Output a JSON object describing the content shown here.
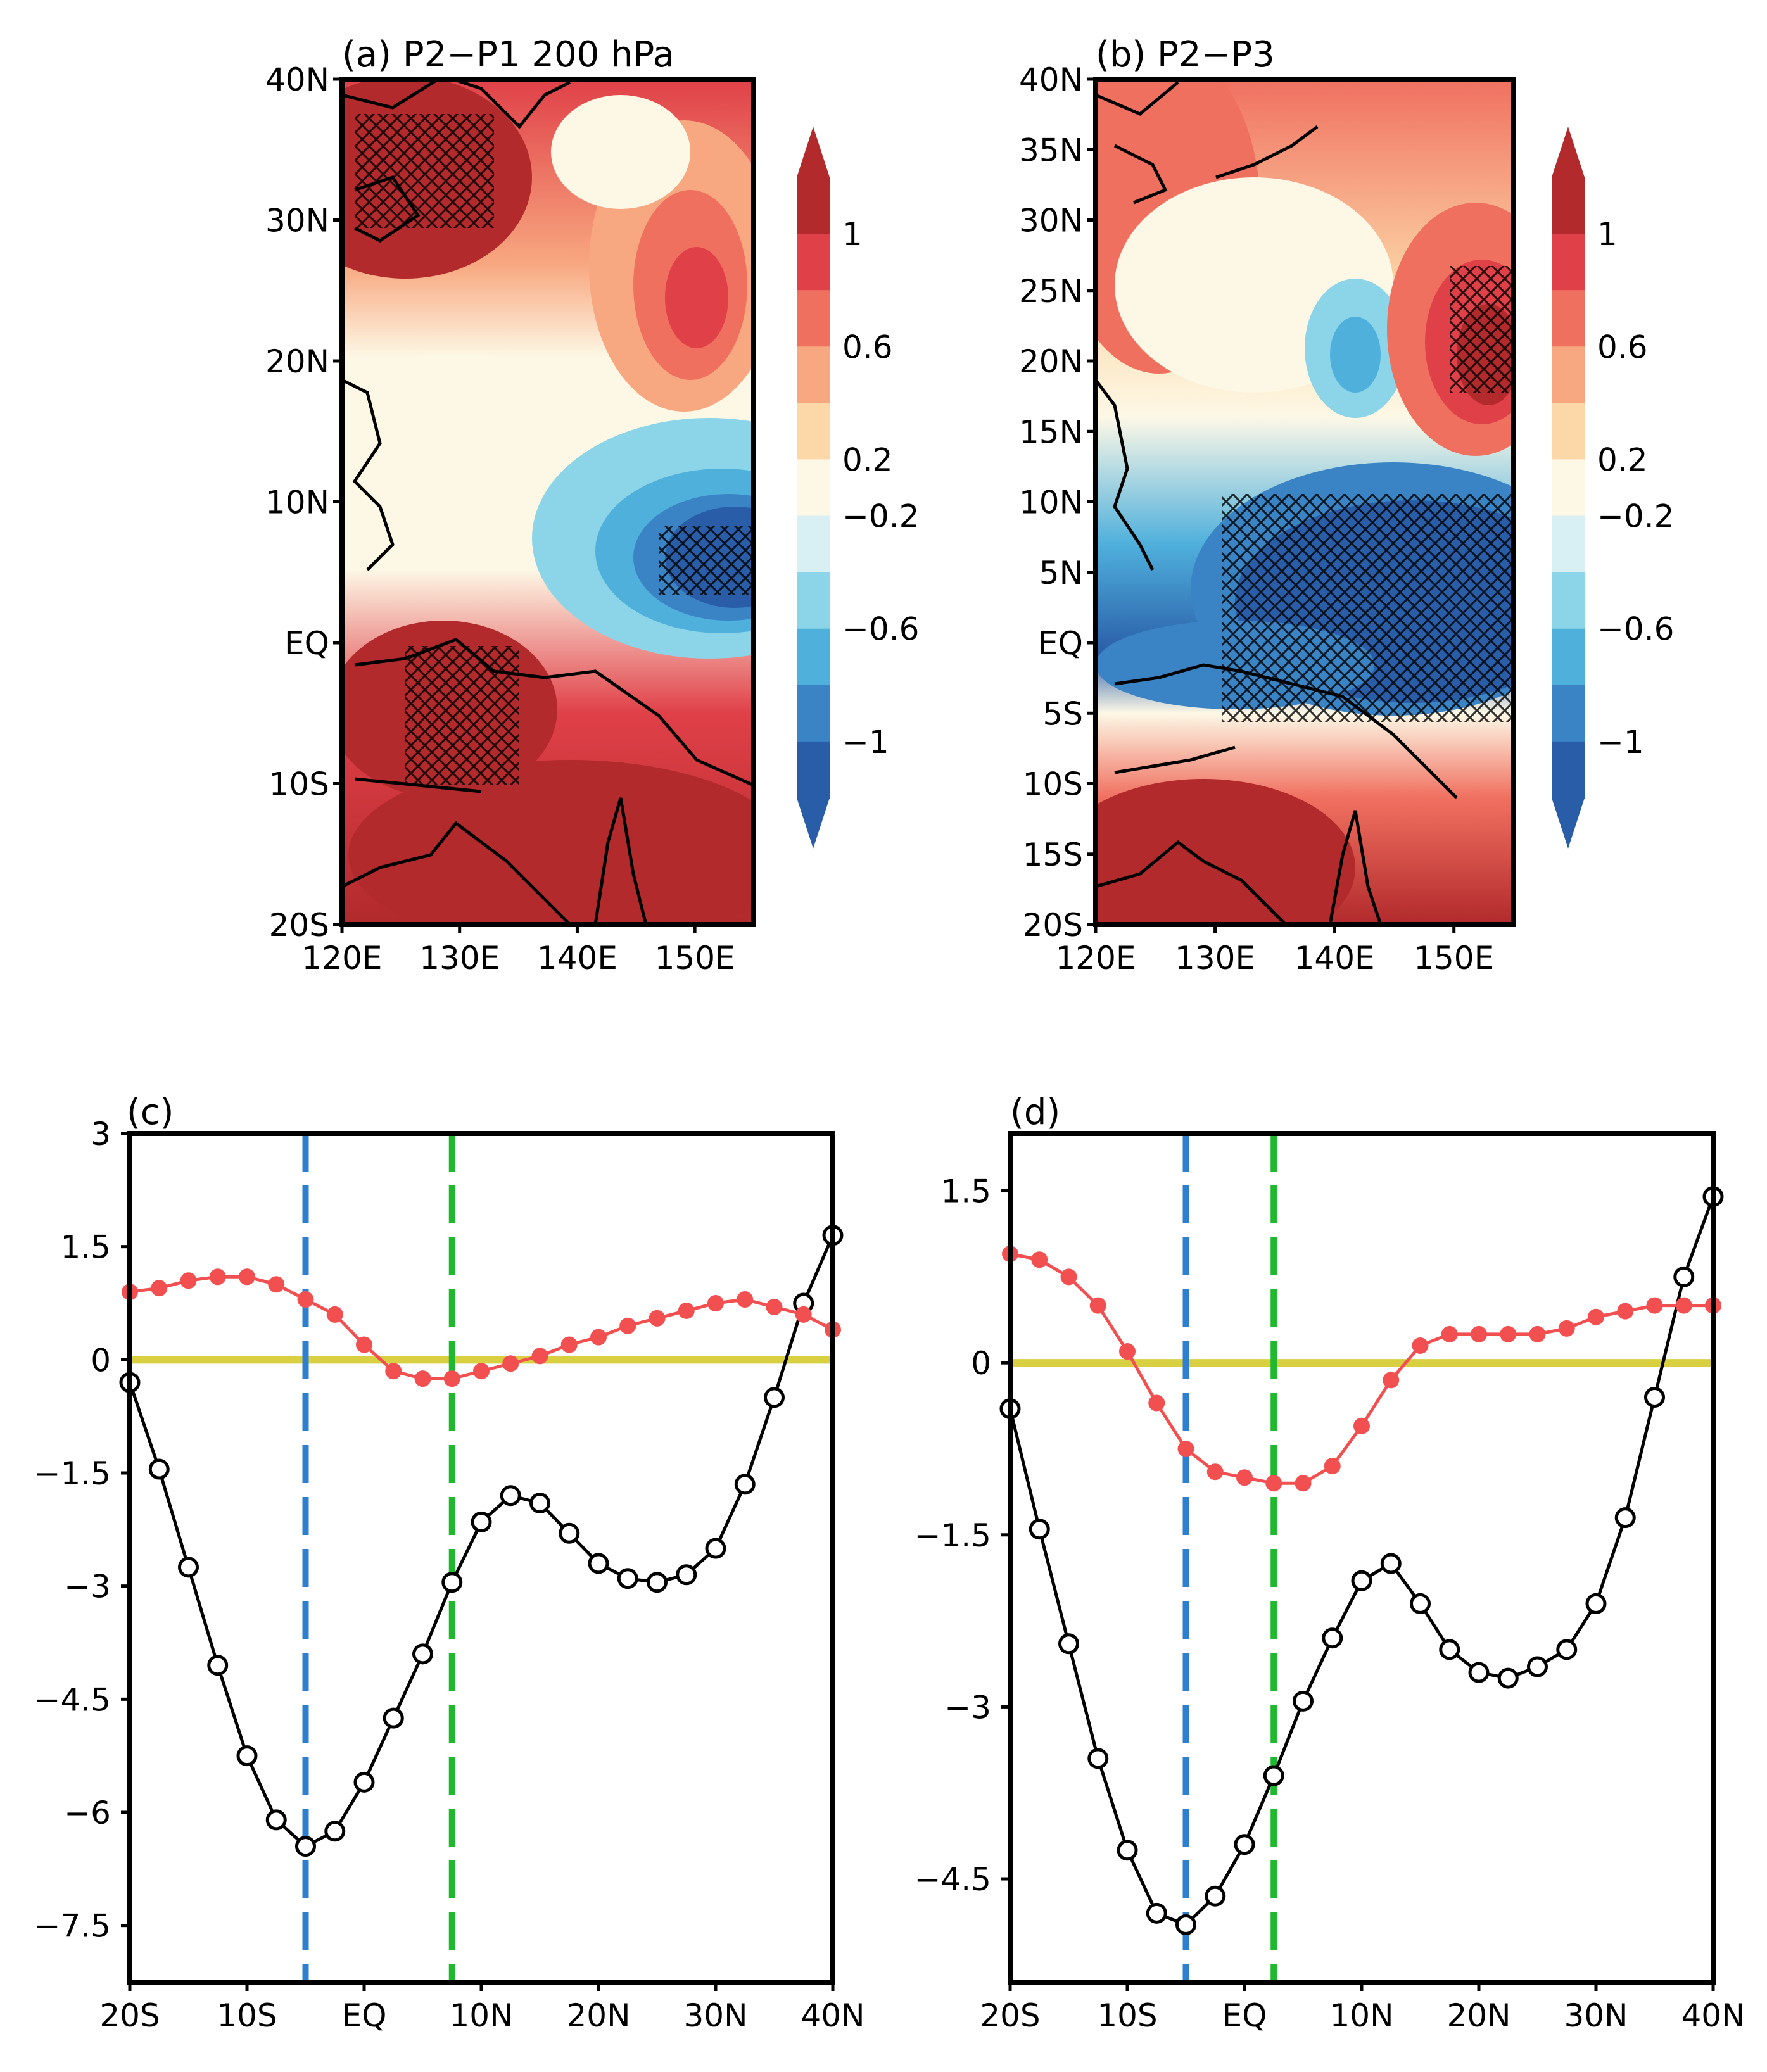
{
  "colors": {
    "contour_levels": [
      "#2a5da8",
      "#3a84c6",
      "#4fb0dc",
      "#8cd4e8",
      "#d8f0f4",
      "#fdf8e6",
      "#fcd8a8",
      "#f8a880",
      "#f07060",
      "#e04048",
      "#b22a2c"
    ],
    "red_series": "#f25050",
    "black_series": "#000000",
    "blue_dashed": "#2f7fd1",
    "green_dashed": "#1fb82f",
    "zero_line": "#d8d040",
    "land_outline": "#000000"
  },
  "panels": {
    "a": {
      "label": "(a) P2−P1 200 hPa",
      "yticks": [
        "40N",
        "30N",
        "20N",
        "10N",
        "EQ",
        "10S",
        "20S"
      ],
      "xticks": [
        "120E",
        "130E",
        "140E",
        "150E"
      ]
    },
    "b": {
      "label": "(b) P2−P3",
      "yticks": [
        "40N",
        "35N",
        "30N",
        "25N",
        "20N",
        "15N",
        "10N",
        "5N",
        "EQ",
        "5S",
        "10S",
        "15S",
        "20S"
      ],
      "xticks": [
        "120E",
        "130E",
        "140E",
        "150E"
      ]
    },
    "c": {
      "label": "(c)"
    },
    "d": {
      "label": "(d)"
    }
  },
  "colorbar": {
    "tick_labels": [
      "1",
      "0.6",
      "0.2",
      "−0.2",
      "−0.6",
      "−1"
    ]
  },
  "chart_data": [
    {
      "panel": "a",
      "type": "heatmap",
      "title": "(a) P2−P1 200 hPa",
      "x_range": [
        120,
        155
      ],
      "y_range": [
        -20,
        40
      ],
      "levels": [
        -1,
        -0.8,
        -0.6,
        -0.4,
        -0.2,
        0,
        0.2,
        0.4,
        0.6,
        0.8,
        1
      ],
      "fields": [
        {
          "lon": 120,
          "lat": 35,
          "value": 1.1
        },
        {
          "lon": 150,
          "lat": 25,
          "value": 0.9
        },
        {
          "lon": 125,
          "lat": 15,
          "value": 0.0
        },
        {
          "lon": 152,
          "lat": 6,
          "value": -1.1
        },
        {
          "lon": 130,
          "lat": -6,
          "value": 1.0
        },
        {
          "lon": 140,
          "lat": -15,
          "value": 1.1
        }
      ]
    },
    {
      "panel": "b",
      "type": "heatmap",
      "title": "(b) P2−P3",
      "x_range": [
        120,
        155
      ],
      "y_range": [
        -20,
        40
      ],
      "levels": [
        -1,
        -0.8,
        -0.6,
        -0.4,
        -0.2,
        0,
        0.2,
        0.4,
        0.6,
        0.8,
        1
      ],
      "fields": [
        {
          "lon": 124,
          "lat": 36,
          "value": 0.8
        },
        {
          "lon": 142,
          "lat": 21,
          "value": -0.5
        },
        {
          "lon": 153,
          "lat": 22,
          "value": 1.1
        },
        {
          "lon": 145,
          "lat": 7,
          "value": -1.1
        },
        {
          "lon": 135,
          "lat": -13,
          "value": 1.1
        }
      ]
    },
    {
      "panel": "c",
      "type": "line",
      "title": "(c)",
      "xticks": [
        "20S",
        "10S",
        "EQ",
        "10N",
        "20N",
        "30N",
        "40N"
      ],
      "yticks": [
        "3",
        "1.5",
        "0",
        "−1.5",
        "−3",
        "−4.5",
        "−6",
        "−7.5"
      ],
      "xlim": [
        -20,
        40
      ],
      "ylim": [
        -8.25,
        3
      ],
      "x": [
        -20,
        -17.5,
        -15,
        -12.5,
        -10,
        -7.5,
        -5,
        -2.5,
        0,
        2.5,
        5,
        7.5,
        10,
        12.5,
        15,
        17.5,
        20,
        22.5,
        25,
        27.5,
        30,
        32.5,
        35,
        37.5,
        40
      ],
      "series": [
        {
          "color": "#000000",
          "marker": "open-circle",
          "values": [
            -0.3,
            -1.45,
            -2.75,
            -4.05,
            -5.25,
            -6.1,
            -6.45,
            -6.25,
            -5.6,
            -4.75,
            -3.9,
            -2.95,
            -2.15,
            -1.8,
            -1.9,
            -2.3,
            -2.7,
            -2.9,
            -2.95,
            -2.85,
            -2.5,
            -1.65,
            -0.5,
            0.75,
            1.65
          ]
        },
        {
          "color": "#f25050",
          "marker": "filled-circle",
          "values": [
            0.9,
            0.95,
            1.05,
            1.1,
            1.1,
            1.0,
            0.8,
            0.6,
            0.2,
            -0.15,
            -0.25,
            -0.25,
            -0.15,
            -0.05,
            0.05,
            0.2,
            0.3,
            0.45,
            0.55,
            0.65,
            0.75,
            0.8,
            0.7,
            0.6,
            0.4
          ]
        }
      ],
      "vlines": [
        {
          "x": -5,
          "color": "#2f7fd1"
        },
        {
          "x": 7.5,
          "color": "#1fb82f"
        }
      ],
      "hline": 0
    },
    {
      "panel": "d",
      "type": "line",
      "title": "(d)",
      "xticks": [
        "20S",
        "10S",
        "EQ",
        "10N",
        "20N",
        "30N",
        "40N"
      ],
      "yticks": [
        "1.5",
        "0",
        "−1.5",
        "−3",
        "−4.5"
      ],
      "xlim": [
        -20,
        40
      ],
      "ylim": [
        -5.4,
        2
      ],
      "x": [
        -20,
        -17.5,
        -15,
        -12.5,
        -10,
        -7.5,
        -5,
        -2.5,
        0,
        2.5,
        5,
        7.5,
        10,
        12.5,
        15,
        17.5,
        20,
        22.5,
        25,
        27.5,
        30,
        32.5,
        35,
        37.5,
        40
      ],
      "series": [
        {
          "color": "#000000",
          "marker": "open-circle",
          "values": [
            -0.4,
            -1.45,
            -2.45,
            -3.45,
            -4.25,
            -4.8,
            -4.9,
            -4.65,
            -4.2,
            -3.6,
            -2.95,
            -2.4,
            -1.9,
            -1.75,
            -2.1,
            -2.5,
            -2.7,
            -2.75,
            -2.65,
            -2.5,
            -2.1,
            -1.35,
            -0.3,
            0.75,
            1.45
          ]
        },
        {
          "color": "#f25050",
          "marker": "filled-circle",
          "values": [
            0.95,
            0.9,
            0.75,
            0.5,
            0.1,
            -0.35,
            -0.75,
            -0.95,
            -1.0,
            -1.05,
            -1.05,
            -0.9,
            -0.55,
            -0.15,
            0.15,
            0.25,
            0.25,
            0.25,
            0.25,
            0.3,
            0.4,
            0.45,
            0.5,
            0.5,
            0.5
          ]
        }
      ],
      "vlines": [
        {
          "x": -5,
          "color": "#2f7fd1"
        },
        {
          "x": 2.5,
          "color": "#1fb82f"
        }
      ],
      "hline": 0
    }
  ]
}
